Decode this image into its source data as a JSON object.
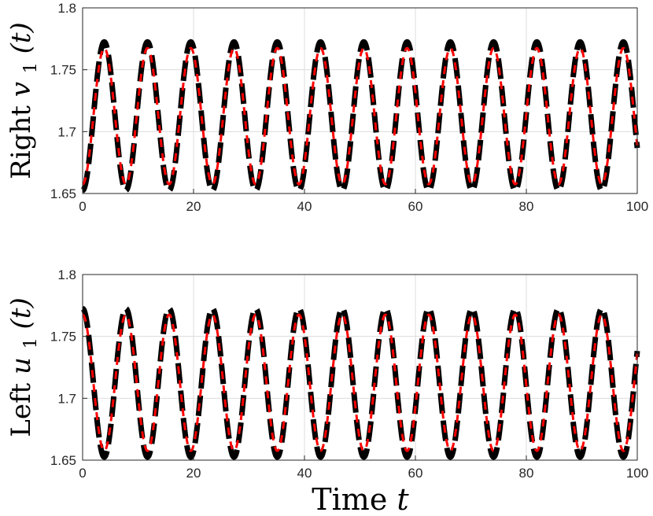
{
  "colors": {
    "black_series": "#000000",
    "red_series": "#ff0000",
    "grid": "#dcdcdc",
    "axes": "#262626"
  },
  "chart_data": [
    {
      "type": "line",
      "ylabel": {
        "word": "Right",
        "var": "v",
        "sub": "1",
        "arg": "(t)"
      },
      "xlabel": null,
      "xlim": [
        0,
        100
      ],
      "ylim": [
        1.65,
        1.8
      ],
      "xticks": [
        "0",
        "20",
        "40",
        "60",
        "80",
        "100"
      ],
      "yticks": [
        "1.65",
        "1.7",
        "1.75",
        "1.8"
      ],
      "grid": true,
      "series": [
        {
          "style": "thick black dashed",
          "color": "#000000",
          "mean": 1.7125,
          "amplitude": 0.06,
          "period": 7.8,
          "phase": 0.0
        },
        {
          "style": "red dashed",
          "color": "#ff0000",
          "mean": 1.7125,
          "amplitude": 0.055,
          "period": 7.8,
          "phase": 0.0
        }
      ]
    },
    {
      "type": "line",
      "ylabel": {
        "word": "Left",
        "var": "u",
        "sub": "1",
        "arg": "(t)"
      },
      "xlabel": {
        "word": "Time",
        "var": "t"
      },
      "xlim": [
        0,
        100
      ],
      "ylim": [
        1.65,
        1.8
      ],
      "xticks": [
        "0",
        "20",
        "40",
        "60",
        "80",
        "100"
      ],
      "yticks": [
        "1.65",
        "1.7",
        "1.75",
        "1.8"
      ],
      "grid": true,
      "series": [
        {
          "style": "thick black dashed",
          "color": "#000000",
          "mean": 1.7125,
          "amplitude": 0.06,
          "period": 7.8,
          "phase": 3.14159
        },
        {
          "style": "red dashed",
          "color": "#ff0000",
          "mean": 1.7125,
          "amplitude": 0.055,
          "period": 7.8,
          "phase": 3.14159
        }
      ]
    }
  ]
}
